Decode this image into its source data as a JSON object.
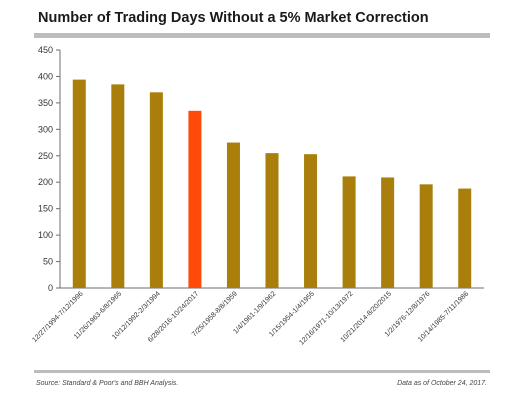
{
  "header": {
    "title": "Number of Trading Days Without a 5% Market Correction"
  },
  "footer": {
    "source": "Source: Standard & Poor's and BBH Analysis.",
    "date_note": "Data as of October 24, 2017."
  },
  "colors": {
    "bar": "#a97e0a",
    "highlight": "#ff4a0a",
    "axis": "#6e6e6e",
    "rule": "#bdbdbd"
  },
  "chart_data": {
    "type": "bar",
    "title": "Number of Trading Days Without a 5% Market Correction",
    "xlabel": "",
    "ylabel": "",
    "ylim": [
      0,
      450
    ],
    "yticks": [
      0,
      50,
      100,
      150,
      200,
      250,
      300,
      350,
      400,
      450
    ],
    "grid": false,
    "highlight_index": 3,
    "categories": [
      "12/27/1994-7/12/1996",
      "11/26/1963-6/8/1965",
      "10/12/1992-2/3/1994",
      "6/28/2016-10/24/2017",
      "7/25/1958-8/8/1959",
      "1/4/1961-1/9/1962",
      "1/15/1954-1/4/1955",
      "12/16/1971-10/13/1972",
      "10/21/2014-8/20/2015",
      "1/2/1976-12/8/1976",
      "10/14/1985-7/11/1986"
    ],
    "values": [
      394,
      385,
      370,
      335,
      275,
      255,
      253,
      211,
      209,
      196,
      188
    ]
  }
}
